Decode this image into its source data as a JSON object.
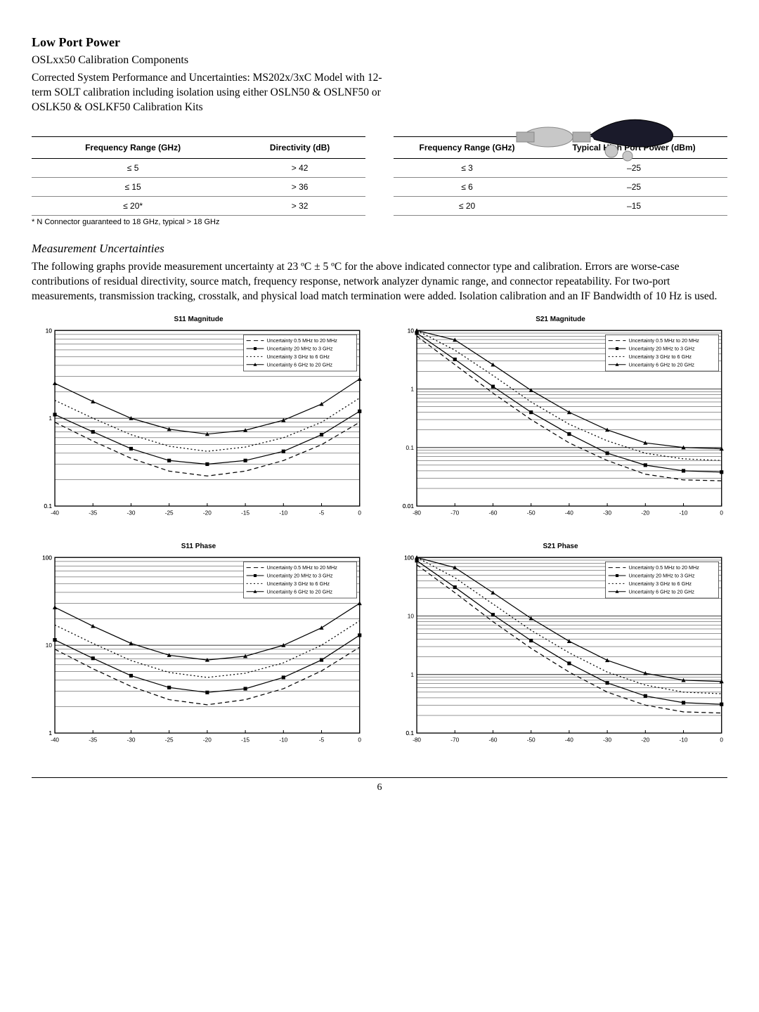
{
  "header": {
    "title": "Low Port Power",
    "subtitle": "OSLxx50 Calibration Components",
    "description": "Corrected System Performance and Uncertainties: MS202x/3xC Model with 12-term SOLT calibration including isolation using either OSLN50 & OSLNF50 or OSLK50 & OSLKF50 Calibration Kits"
  },
  "table_left": {
    "columns": [
      "Frequency Range (GHz)",
      "Directivity (dB)"
    ],
    "rows": [
      [
        "≤ 5",
        "> 42"
      ],
      [
        "≤ 15",
        "> 36"
      ],
      [
        "≤ 20*",
        "> 32"
      ]
    ]
  },
  "table_right": {
    "columns": [
      "Frequency Range (GHz)",
      "Typical High Port Power (dBm)"
    ],
    "rows": [
      [
        "≤ 3",
        "–25"
      ],
      [
        "≤ 6",
        "–25"
      ],
      [
        "≤ 20",
        "–15"
      ]
    ]
  },
  "footnote": "*  N Connector guaranteed to 18 GHz, typical > 18 GHz",
  "uncertainties": {
    "heading": "Measurement Uncertainties",
    "body": "The following graphs provide measurement uncertainty at 23 ºC ± 5 ºC for the above indicated connector type and calibration. Errors are worse-case contributions of residual directivity, source match, frequency response, network analyzer dynamic range, and connector repeatability. For two-port measurements, transmission tracking, crosstalk, and physical load match termination were added. Isolation calibration and an IF Bandwidth of 10 Hz is used."
  },
  "legend_items": [
    {
      "label": "Uncertainty 0.5 MHz to 20 MHz",
      "dash": "6,4",
      "marker": "none"
    },
    {
      "label": "Uncertainty 20 MHz to  3 GHz",
      "dash": "none",
      "marker": "square"
    },
    {
      "label": "Uncertainty 3 GHz to 6 GHz",
      "dash": "2,3",
      "marker": "none"
    },
    {
      "label": "Uncertainty 6 GHz to 20 GHz",
      "dash": "none",
      "marker": "triangle"
    }
  ],
  "charts": {
    "colors": {
      "line": "#000000",
      "grid": "#000000",
      "bg": "#ffffff"
    },
    "stroke_width": 1.2,
    "s11mag": {
      "title": "S11 Magnitude",
      "xlim": [
        -40,
        0
      ],
      "xtick_step": 5,
      "ylog": true,
      "ylim": [
        0.1,
        10
      ],
      "series": [
        {
          "legend": 0,
          "pts": [
            [
              -40,
              0.9
            ],
            [
              -35,
              0.55
            ],
            [
              -30,
              0.35
            ],
            [
              -25,
              0.25
            ],
            [
              -20,
              0.22
            ],
            [
              -15,
              0.25
            ],
            [
              -10,
              0.33
            ],
            [
              -5,
              0.5
            ],
            [
              0,
              0.9
            ]
          ]
        },
        {
          "legend": 1,
          "pts": [
            [
              -40,
              1.1
            ],
            [
              -35,
              0.7
            ],
            [
              -30,
              0.45
            ],
            [
              -25,
              0.33
            ],
            [
              -20,
              0.3
            ],
            [
              -15,
              0.33
            ],
            [
              -10,
              0.42
            ],
            [
              -5,
              0.65
            ],
            [
              0,
              1.2
            ]
          ]
        },
        {
          "legend": 2,
          "pts": [
            [
              -40,
              1.6
            ],
            [
              -35,
              1.0
            ],
            [
              -30,
              0.65
            ],
            [
              -25,
              0.48
            ],
            [
              -20,
              0.42
            ],
            [
              -15,
              0.47
            ],
            [
              -10,
              0.6
            ],
            [
              -5,
              0.9
            ],
            [
              0,
              1.7
            ]
          ]
        },
        {
          "legend": 3,
          "pts": [
            [
              -40,
              2.5
            ],
            [
              -35,
              1.55
            ],
            [
              -30,
              1.0
            ],
            [
              -25,
              0.75
            ],
            [
              -20,
              0.66
            ],
            [
              -15,
              0.73
            ],
            [
              -10,
              0.95
            ],
            [
              -5,
              1.45
            ],
            [
              0,
              2.8
            ]
          ]
        }
      ]
    },
    "s21mag": {
      "title": "S21 Magnitude",
      "xlim": [
        -80,
        0
      ],
      "xtick_step": 10,
      "ylog": true,
      "ylim": [
        0.01,
        10
      ],
      "series": [
        {
          "legend": 0,
          "pts": [
            [
              -80,
              8
            ],
            [
              -70,
              2.6
            ],
            [
              -60,
              0.85
            ],
            [
              -50,
              0.3
            ],
            [
              -40,
              0.12
            ],
            [
              -30,
              0.06
            ],
            [
              -20,
              0.035
            ],
            [
              -10,
              0.028
            ],
            [
              0,
              0.027
            ]
          ]
        },
        {
          "legend": 1,
          "pts": [
            [
              -80,
              9
            ],
            [
              -70,
              3.2
            ],
            [
              -60,
              1.1
            ],
            [
              -50,
              0.4
            ],
            [
              -40,
              0.17
            ],
            [
              -30,
              0.08
            ],
            [
              -20,
              0.05
            ],
            [
              -10,
              0.04
            ],
            [
              0,
              0.038
            ]
          ]
        },
        {
          "legend": 2,
          "pts": [
            [
              -80,
              10
            ],
            [
              -70,
              4.6
            ],
            [
              -60,
              1.7
            ],
            [
              -50,
              0.6
            ],
            [
              -40,
              0.25
            ],
            [
              -30,
              0.13
            ],
            [
              -20,
              0.08
            ],
            [
              -10,
              0.064
            ],
            [
              0,
              0.06
            ]
          ]
        },
        {
          "legend": 3,
          "pts": [
            [
              -80,
              10
            ],
            [
              -70,
              6.9
            ],
            [
              -60,
              2.6
            ],
            [
              -50,
              0.95
            ],
            [
              -40,
              0.4
            ],
            [
              -30,
              0.2
            ],
            [
              -20,
              0.12
            ],
            [
              -10,
              0.1
            ],
            [
              0,
              0.095
            ]
          ]
        }
      ]
    },
    "s11phase": {
      "title": "S11 Phase",
      "xlim": [
        -40,
        0
      ],
      "xtick_step": 5,
      "ylog": true,
      "ylim": [
        1,
        100
      ],
      "series": [
        {
          "legend": 0,
          "pts": [
            [
              -40,
              9
            ],
            [
              -35,
              5.4
            ],
            [
              -30,
              3.4
            ],
            [
              -25,
              2.4
            ],
            [
              -20,
              2.1
            ],
            [
              -15,
              2.4
            ],
            [
              -10,
              3.2
            ],
            [
              -5,
              5.1
            ],
            [
              0,
              9.5
            ]
          ]
        },
        {
          "legend": 1,
          "pts": [
            [
              -40,
              11.5
            ],
            [
              -35,
              7.1
            ],
            [
              -30,
              4.5
            ],
            [
              -25,
              3.3
            ],
            [
              -20,
              2.9
            ],
            [
              -15,
              3.2
            ],
            [
              -10,
              4.3
            ],
            [
              -5,
              6.8
            ],
            [
              0,
              13
            ]
          ]
        },
        {
          "legend": 2,
          "pts": [
            [
              -40,
              17
            ],
            [
              -35,
              10.5
            ],
            [
              -30,
              6.7
            ],
            [
              -25,
              4.9
            ],
            [
              -20,
              4.3
            ],
            [
              -15,
              4.8
            ],
            [
              -10,
              6.3
            ],
            [
              -5,
              10
            ],
            [
              0,
              19
            ]
          ]
        },
        {
          "legend": 3,
          "pts": [
            [
              -40,
              27
            ],
            [
              -35,
              16.5
            ],
            [
              -30,
              10.5
            ],
            [
              -25,
              7.7
            ],
            [
              -20,
              6.8
            ],
            [
              -15,
              7.5
            ],
            [
              -10,
              10
            ],
            [
              -5,
              15.8
            ],
            [
              0,
              30
            ]
          ]
        }
      ]
    },
    "s21phase": {
      "title": "S21 Phase",
      "xlim": [
        -80,
        0
      ],
      "xtick_step": 10,
      "ylog": true,
      "ylim": [
        0.1,
        100
      ],
      "series": [
        {
          "legend": 0,
          "pts": [
            [
              -80,
              75
            ],
            [
              -70,
              25
            ],
            [
              -60,
              8
            ],
            [
              -50,
              2.8
            ],
            [
              -40,
              1.1
            ],
            [
              -30,
              0.5
            ],
            [
              -20,
              0.3
            ],
            [
              -10,
              0.23
            ],
            [
              0,
              0.22
            ]
          ]
        },
        {
          "legend": 1,
          "pts": [
            [
              -80,
              88
            ],
            [
              -70,
              31
            ],
            [
              -60,
              10.5
            ],
            [
              -50,
              3.8
            ],
            [
              -40,
              1.55
            ],
            [
              -30,
              0.72
            ],
            [
              -20,
              0.43
            ],
            [
              -10,
              0.33
            ],
            [
              0,
              0.31
            ]
          ]
        },
        {
          "legend": 2,
          "pts": [
            [
              -80,
              100
            ],
            [
              -70,
              45
            ],
            [
              -60,
              16
            ],
            [
              -50,
              5.7
            ],
            [
              -40,
              2.35
            ],
            [
              -30,
              1.1
            ],
            [
              -20,
              0.66
            ],
            [
              -10,
              0.5
            ],
            [
              0,
              0.47
            ]
          ]
        },
        {
          "legend": 3,
          "pts": [
            [
              -80,
              100
            ],
            [
              -70,
              67
            ],
            [
              -60,
              25
            ],
            [
              -50,
              9.1
            ],
            [
              -40,
              3.7
            ],
            [
              -30,
              1.75
            ],
            [
              -20,
              1.05
            ],
            [
              -10,
              0.8
            ],
            [
              0,
              0.76
            ]
          ]
        }
      ]
    }
  },
  "page_number": "6"
}
